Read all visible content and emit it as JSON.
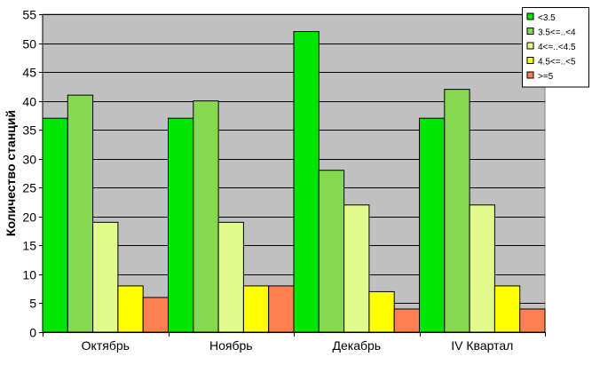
{
  "chart_data": {
    "type": "bar",
    "title": "",
    "xlabel": "",
    "ylabel": "Количество станций",
    "ylim": [
      0,
      55
    ],
    "yticks": [
      0,
      5,
      10,
      15,
      20,
      25,
      30,
      35,
      40,
      45,
      50,
      55
    ],
    "grid": true,
    "legend_position": "top-right",
    "plot_background": "#c0c0c0",
    "categories": [
      "Октябрь",
      "Ноябрь",
      "Декабрь",
      "IV Квартал"
    ],
    "series": [
      {
        "name": "<3.5",
        "color": "#00e600",
        "values": [
          37,
          37,
          52,
          37
        ]
      },
      {
        "name": "3.5<=..<4",
        "color": "#86d84e",
        "values": [
          41,
          40,
          28,
          42
        ]
      },
      {
        "name": "4<=..<4.5",
        "color": "#e2fb8f",
        "values": [
          19,
          19,
          22,
          22
        ]
      },
      {
        "name": "4.5<=..<5",
        "color": "#ffff00",
        "values": [
          8,
          8,
          7,
          8
        ]
      },
      {
        "name": ">=5",
        "color": "#ff7f50",
        "values": [
          6,
          8,
          4,
          4
        ]
      }
    ]
  }
}
